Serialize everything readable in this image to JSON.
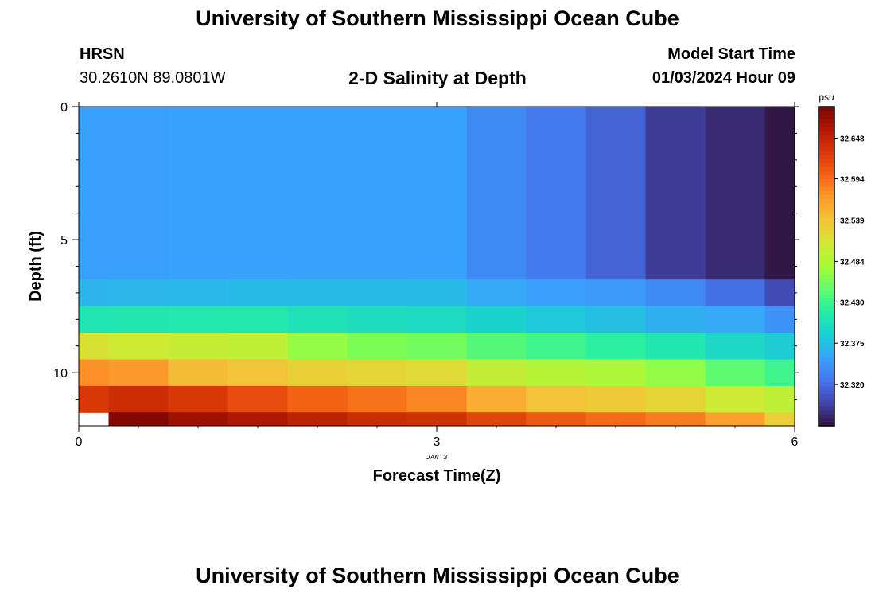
{
  "page": {
    "title": "University of Southern Mississippi Ocean Cube",
    "footer_title": "University of Southern Mississippi Ocean Cube",
    "station_code": "HRSN",
    "station_coords": "30.2610N  89.0801W",
    "plot_title": "2-D Salinity at Depth",
    "model_label": "Model Start Time",
    "model_time": "01/03/2024 Hour 09"
  },
  "chart_data": {
    "type": "heatmap",
    "title": "2-D Salinity at Depth",
    "xlabel": "Forecast Time(Z)",
    "ylabel": "Depth (ft)",
    "x_date_label": "JAN 3",
    "x_ticks": [
      "0",
      "3",
      "6"
    ],
    "y_ticks": [
      "0",
      "5",
      "10"
    ],
    "xlim": [
      0,
      6
    ],
    "ylim": [
      12,
      0
    ],
    "colorbar_unit": "psu",
    "colorbar_ticks": [
      "32.648",
      "32.594",
      "32.539",
      "32.484",
      "32.430",
      "32.375",
      "32.320"
    ],
    "colorbar_range": [
      32.265,
      32.69
    ],
    "colors": {
      "colormap": [
        "#30123b",
        "#4145ab",
        "#4675ed",
        "#39a2fc",
        "#1bcfd4",
        "#24eca6",
        "#61fc6c",
        "#a4fc3b",
        "#d1e834",
        "#f3c63a",
        "#fe9b2d",
        "#f36315",
        "#d93806",
        "#b11901",
        "#7a0403"
      ]
    },
    "x": [
      0,
      0.5,
      1.0,
      1.5,
      2.0,
      2.5,
      3.0,
      3.5,
      4.0,
      4.5,
      5.0,
      5.5,
      6.0
    ],
    "y": [
      0,
      6.5,
      7.5,
      8.5,
      9.5,
      10.5,
      11.5,
      12
    ],
    "z": [
      [
        32.355,
        32.355,
        32.356,
        32.356,
        32.356,
        32.356,
        32.356,
        32.34,
        32.33,
        32.315,
        32.29,
        32.28,
        32.268
      ],
      [
        32.368,
        32.37,
        32.371,
        32.372,
        32.373,
        32.373,
        32.372,
        32.36,
        32.355,
        32.35,
        32.34,
        32.322,
        32.3
      ],
      [
        32.408,
        32.41,
        32.412,
        32.412,
        32.405,
        32.4,
        32.398,
        32.39,
        32.382,
        32.375,
        32.365,
        32.36,
        32.345
      ],
      [
        32.515,
        32.505,
        32.5,
        32.495,
        32.47,
        32.46,
        32.455,
        32.44,
        32.43,
        32.42,
        32.41,
        32.395,
        32.385
      ],
      [
        32.575,
        32.57,
        32.545,
        32.54,
        32.53,
        32.525,
        32.52,
        32.5,
        32.49,
        32.485,
        32.47,
        32.445,
        32.43
      ],
      [
        32.63,
        32.64,
        32.63,
        32.615,
        32.6,
        32.59,
        32.58,
        32.555,
        32.54,
        32.535,
        32.525,
        32.505,
        32.495
      ],
      [
        null,
        32.685,
        32.67,
        32.66,
        32.65,
        32.64,
        32.635,
        32.62,
        32.605,
        32.595,
        32.585,
        32.565,
        32.53
      ]
    ]
  }
}
